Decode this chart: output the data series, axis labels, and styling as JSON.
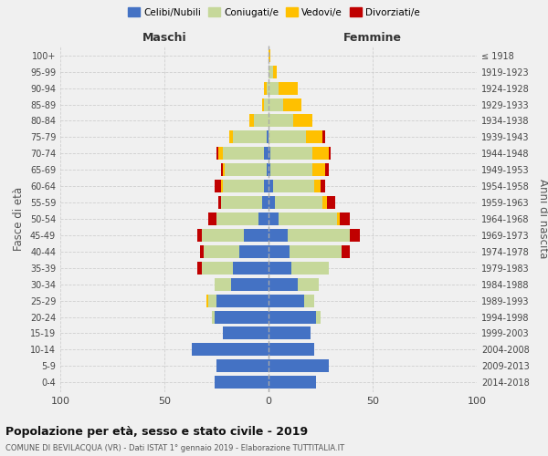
{
  "age_groups": [
    "0-4",
    "5-9",
    "10-14",
    "15-19",
    "20-24",
    "25-29",
    "30-34",
    "35-39",
    "40-44",
    "45-49",
    "50-54",
    "55-59",
    "60-64",
    "65-69",
    "70-74",
    "75-79",
    "80-84",
    "85-89",
    "90-94",
    "95-99",
    "100+"
  ],
  "birth_years": [
    "2014-2018",
    "2009-2013",
    "2004-2008",
    "1999-2003",
    "1994-1998",
    "1989-1993",
    "1984-1988",
    "1979-1983",
    "1974-1978",
    "1969-1973",
    "1964-1968",
    "1959-1963",
    "1954-1958",
    "1949-1953",
    "1944-1948",
    "1939-1943",
    "1934-1938",
    "1929-1933",
    "1924-1928",
    "1919-1923",
    "≤ 1918"
  ],
  "males": {
    "celibe": [
      26,
      25,
      37,
      22,
      26,
      25,
      18,
      17,
      14,
      12,
      5,
      3,
      2,
      1,
      2,
      1,
      0,
      0,
      0,
      0,
      0
    ],
    "coniugato": [
      0,
      0,
      0,
      0,
      1,
      4,
      8,
      15,
      17,
      20,
      20,
      20,
      20,
      20,
      20,
      16,
      7,
      2,
      1,
      0,
      0
    ],
    "vedovo": [
      0,
      0,
      0,
      0,
      0,
      1,
      0,
      0,
      0,
      0,
      0,
      0,
      1,
      1,
      2,
      2,
      2,
      1,
      1,
      0,
      0
    ],
    "divorziato": [
      0,
      0,
      0,
      0,
      0,
      0,
      0,
      2,
      2,
      2,
      4,
      1,
      3,
      1,
      1,
      0,
      0,
      0,
      0,
      0,
      0
    ]
  },
  "females": {
    "nubile": [
      23,
      29,
      22,
      20,
      23,
      17,
      14,
      11,
      10,
      9,
      5,
      3,
      2,
      1,
      1,
      0,
      0,
      0,
      0,
      0,
      0
    ],
    "coniugata": [
      0,
      0,
      0,
      0,
      2,
      5,
      10,
      18,
      25,
      30,
      28,
      23,
      20,
      20,
      20,
      18,
      12,
      7,
      5,
      2,
      0
    ],
    "vedova": [
      0,
      0,
      0,
      0,
      0,
      0,
      0,
      0,
      0,
      0,
      1,
      2,
      3,
      6,
      8,
      8,
      9,
      9,
      9,
      2,
      1
    ],
    "divorziata": [
      0,
      0,
      0,
      0,
      0,
      0,
      0,
      0,
      4,
      5,
      5,
      4,
      2,
      2,
      1,
      1,
      0,
      0,
      0,
      0,
      0
    ]
  },
  "colors": {
    "celibe": "#4472c4",
    "coniugato": "#c6d89a",
    "vedovo": "#ffc000",
    "divorziato": "#c00000"
  },
  "xlim": 100,
  "title": "Popolazione per età, sesso e stato civile - 2019",
  "subtitle": "COMUNE DI BEVILACQUA (VR) - Dati ISTAT 1° gennaio 2019 - Elaborazione TUTTITALIA.IT",
  "ylabel_left": "Fasce di età",
  "ylabel_right": "Anni di nascita",
  "xlabel_left": "Maschi",
  "xlabel_right": "Femmine",
  "legend_labels": [
    "Celibi/Nubili",
    "Coniugati/e",
    "Vedovi/e",
    "Divorziati/e"
  ],
  "bg_color": "#f0f0f0",
  "grid_color": "#cccccc"
}
